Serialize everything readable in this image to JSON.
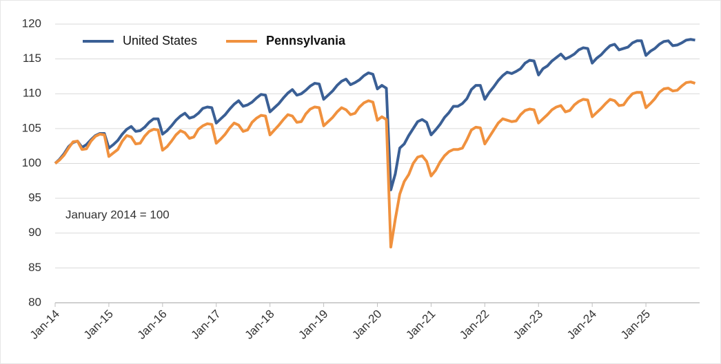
{
  "chart_data": {
    "type": "line",
    "annotation": "January 2014 = 100",
    "categories": [
      "Jan-14",
      null,
      null,
      null,
      null,
      null,
      null,
      null,
      null,
      null,
      null,
      null,
      "Jan-15",
      null,
      null,
      null,
      null,
      null,
      null,
      null,
      null,
      null,
      null,
      null,
      "Jan-16",
      null,
      null,
      null,
      null,
      null,
      null,
      null,
      null,
      null,
      null,
      null,
      "Jan-17",
      null,
      null,
      null,
      null,
      null,
      null,
      null,
      null,
      null,
      null,
      null,
      "Jan-18",
      null,
      null,
      null,
      null,
      null,
      null,
      null,
      null,
      null,
      null,
      null,
      "Jan-19",
      null,
      null,
      null,
      null,
      null,
      null,
      null,
      null,
      null,
      null,
      null,
      "Jan-20",
      null,
      null,
      null,
      null,
      null,
      null,
      null,
      null,
      null,
      null,
      null,
      "Jan-21",
      null,
      null,
      null,
      null,
      null,
      null,
      null,
      null,
      null,
      null,
      null,
      "Jan-22",
      null,
      null,
      null,
      null,
      null,
      null,
      null,
      null,
      null,
      null,
      null,
      "Jan-23",
      null,
      null,
      null,
      null,
      null,
      null,
      null,
      null,
      null,
      null,
      null,
      "Jan-24",
      null,
      null,
      null,
      null,
      null,
      null,
      null,
      null,
      null,
      null,
      null,
      "Jan-25",
      null,
      null,
      null,
      null,
      null,
      null,
      null,
      null,
      null,
      null,
      null
    ],
    "series": [
      {
        "name": "United States",
        "color": "#3a5f95",
        "values": [
          100,
          100.6,
          101.4,
          102.4,
          103.0,
          103.2,
          102.3,
          102.7,
          103.4,
          104.0,
          104.3,
          104.3,
          102.2,
          102.7,
          103.3,
          104.2,
          104.9,
          105.3,
          104.6,
          104.7,
          105.2,
          105.9,
          106.4,
          106.4,
          104.2,
          104.7,
          105.4,
          106.2,
          106.8,
          107.2,
          106.5,
          106.7,
          107.2,
          107.9,
          108.1,
          108.0,
          105.8,
          106.4,
          107.0,
          107.8,
          108.5,
          109.0,
          108.2,
          108.4,
          108.8,
          109.4,
          109.9,
          109.8,
          107.4,
          108.0,
          108.6,
          109.4,
          110.1,
          110.6,
          109.8,
          110.0,
          110.5,
          111.1,
          111.5,
          111.4,
          109.2,
          109.8,
          110.4,
          111.2,
          111.8,
          112.1,
          111.3,
          111.6,
          112.0,
          112.6,
          113.0,
          112.8,
          110.7,
          111.2,
          110.8,
          96.2,
          98.5,
          102.2,
          102.8,
          104.0,
          105.0,
          106.0,
          106.3,
          105.9,
          104.1,
          104.8,
          105.6,
          106.6,
          107.3,
          108.2,
          108.2,
          108.6,
          109.3,
          110.6,
          111.2,
          111.2,
          109.2,
          110.2,
          111.0,
          111.9,
          112.6,
          113.1,
          112.9,
          113.2,
          113.6,
          114.4,
          114.8,
          114.7,
          112.7,
          113.6,
          114.0,
          114.7,
          115.2,
          115.7,
          115.0,
          115.3,
          115.7,
          116.3,
          116.6,
          116.5,
          114.4,
          115.1,
          115.6,
          116.3,
          116.9,
          117.1,
          116.3,
          116.5,
          116.7,
          117.3,
          117.6,
          117.6,
          115.5,
          116.1,
          116.5,
          117.1,
          117.5,
          117.6,
          116.9,
          117.0,
          117.3,
          117.7,
          117.8,
          117.7
        ]
      },
      {
        "name": "Pennsylvania",
        "color": "#f0913e",
        "values": [
          100,
          100.5,
          101.2,
          102.2,
          103.1,
          103.2,
          102.0,
          102.1,
          103.2,
          103.9,
          104.2,
          104.1,
          101.0,
          101.5,
          102.0,
          103.2,
          104.0,
          103.8,
          102.8,
          102.9,
          103.9,
          104.6,
          104.9,
          104.8,
          101.9,
          102.4,
          103.2,
          104.1,
          104.7,
          104.4,
          103.6,
          103.8,
          104.9,
          105.4,
          105.7,
          105.6,
          102.9,
          103.5,
          104.2,
          105.1,
          105.8,
          105.5,
          104.6,
          104.8,
          105.9,
          106.5,
          106.9,
          106.8,
          104.1,
          104.8,
          105.5,
          106.3,
          107.0,
          106.8,
          105.9,
          106.0,
          107.1,
          107.8,
          108.1,
          108.0,
          105.4,
          106.0,
          106.6,
          107.4,
          108.0,
          107.7,
          107.0,
          107.2,
          108.1,
          108.7,
          109.0,
          108.8,
          106.2,
          106.7,
          106.3,
          88.0,
          92.0,
          95.6,
          97.4,
          98.4,
          100.0,
          100.9,
          101.1,
          100.3,
          98.2,
          99.0,
          100.2,
          101.1,
          101.7,
          102.0,
          102.0,
          102.2,
          103.4,
          104.8,
          105.2,
          105.1,
          102.8,
          103.8,
          104.8,
          105.8,
          106.4,
          106.2,
          106.0,
          106.1,
          107.0,
          107.6,
          107.8,
          107.7,
          105.8,
          106.4,
          107.0,
          107.7,
          108.1,
          108.3,
          107.4,
          107.6,
          108.4,
          108.9,
          109.2,
          109.1,
          106.7,
          107.3,
          107.9,
          108.6,
          109.2,
          109.0,
          108.3,
          108.4,
          109.3,
          110.0,
          110.2,
          110.2,
          108.0,
          108.6,
          109.3,
          110.2,
          110.7,
          110.8,
          110.4,
          110.5,
          111.1,
          111.6,
          111.7,
          111.5
        ]
      }
    ],
    "ylim": [
      80,
      120
    ],
    "yticks": [
      80,
      85,
      90,
      95,
      100,
      105,
      110,
      115,
      120
    ],
    "grid": true,
    "legend": "top-left"
  }
}
